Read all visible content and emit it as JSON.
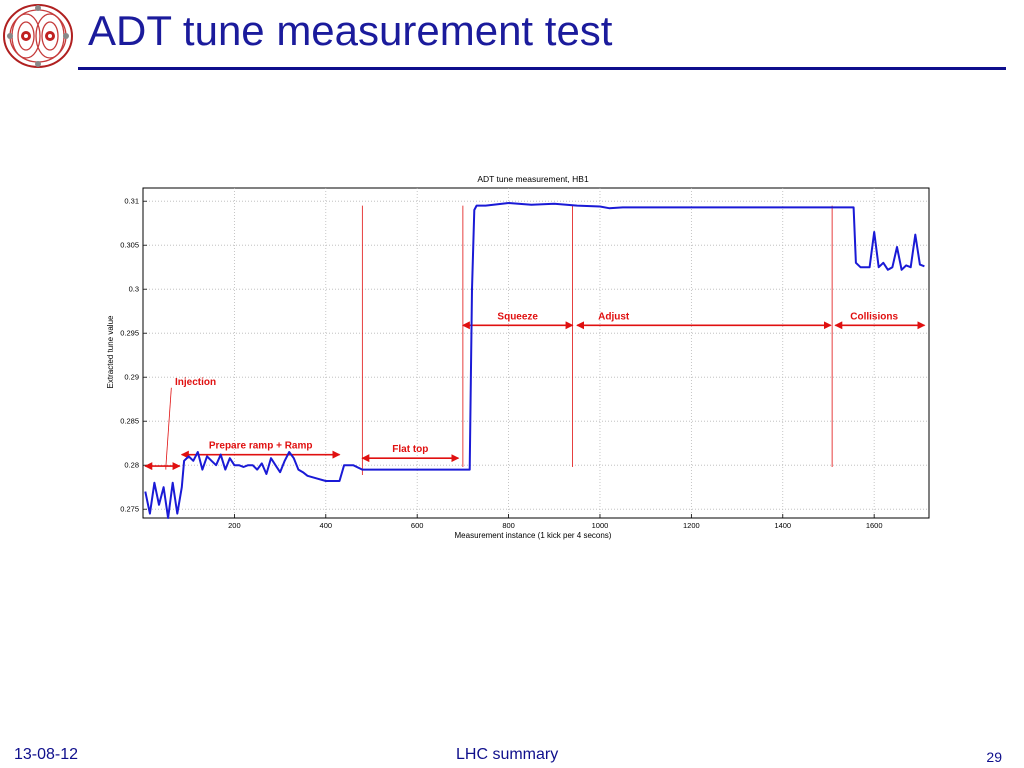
{
  "slide": {
    "title": "ADT tune measurement test",
    "footer_date": "13-08-12",
    "footer_center": "LHC summary",
    "page_number": "29",
    "logo_icon": "lhc-dipole-logo-icon"
  },
  "chart_data": {
    "type": "line",
    "title": "ADT tune measurement, HB1",
    "xlabel": "Measurement instance (1 kick per 4 secons)",
    "ylabel": "Extracted tune value",
    "xlim": [
      0,
      1720
    ],
    "ylim": [
      0.274,
      0.3115
    ],
    "xticks": [
      200,
      400,
      600,
      800,
      1000,
      1200,
      1400,
      1600
    ],
    "yticks": [
      0.275,
      0.28,
      0.285,
      0.29,
      0.295,
      0.3,
      0.305,
      0.31
    ],
    "grid": true,
    "series": [
      {
        "color": "#1a1ad6",
        "x": [
          5,
          15,
          25,
          35,
          45,
          55,
          65,
          75,
          85,
          90,
          100,
          110,
          120,
          130,
          140,
          150,
          160,
          170,
          180,
          190,
          200,
          210,
          220,
          230,
          240,
          250,
          260,
          270,
          280,
          290,
          300,
          310,
          320,
          330,
          340,
          350,
          360,
          380,
          400,
          420,
          430,
          440,
          460,
          480,
          500,
          550,
          600,
          650,
          700,
          715,
          720,
          725,
          730,
          750,
          800,
          850,
          900,
          950,
          1000,
          1020,
          1050,
          1100,
          1150,
          1200,
          1250,
          1300,
          1350,
          1400,
          1450,
          1500,
          1540,
          1555,
          1560,
          1570,
          1590,
          1600,
          1610,
          1620,
          1630,
          1640,
          1650,
          1660,
          1670,
          1680,
          1690,
          1700,
          1710
        ],
        "y": [
          0.277,
          0.2745,
          0.278,
          0.2755,
          0.2775,
          0.274,
          0.278,
          0.2745,
          0.2775,
          0.2805,
          0.281,
          0.2805,
          0.2815,
          0.2795,
          0.281,
          0.2805,
          0.28,
          0.2812,
          0.2795,
          0.2808,
          0.28,
          0.28,
          0.2798,
          0.28,
          0.28,
          0.2795,
          0.2802,
          0.279,
          0.2808,
          0.28,
          0.2792,
          0.2805,
          0.2815,
          0.2808,
          0.2795,
          0.2792,
          0.2788,
          0.2785,
          0.2782,
          0.2782,
          0.2782,
          0.28,
          0.28,
          0.2795,
          0.2795,
          0.2795,
          0.2795,
          0.2795,
          0.2795,
          0.2795,
          0.3,
          0.309,
          0.3095,
          0.3095,
          0.3098,
          0.3096,
          0.3097,
          0.3095,
          0.3094,
          0.3092,
          0.3093,
          0.3093,
          0.3093,
          0.3093,
          0.3093,
          0.3093,
          0.3093,
          0.3093,
          0.3093,
          0.3093,
          0.3093,
          0.3093,
          0.303,
          0.3025,
          0.3025,
          0.3065,
          0.3025,
          0.303,
          0.3022,
          0.3025,
          0.3048,
          0.3022,
          0.3027,
          0.3025,
          0.3062,
          0.3028,
          0.3026
        ]
      }
    ],
    "phases": [
      {
        "label": "Injection",
        "x": [
          5,
          80
        ],
        "line_at": 50
      },
      {
        "label": "Prepare ramp + Ramp",
        "x": [
          85,
          430
        ]
      },
      {
        "label": "Flat top",
        "x": [
          480,
          690
        ],
        "line_at": 480
      },
      {
        "label": "Squeeze",
        "x": [
          700,
          940
        ],
        "line_at": 700
      },
      {
        "label": "Adjust",
        "x": [
          950,
          1505
        ],
        "line_at": 940
      },
      {
        "label": "Collisions",
        "x": [
          1515,
          1710
        ],
        "line_at": 1508
      }
    ]
  }
}
